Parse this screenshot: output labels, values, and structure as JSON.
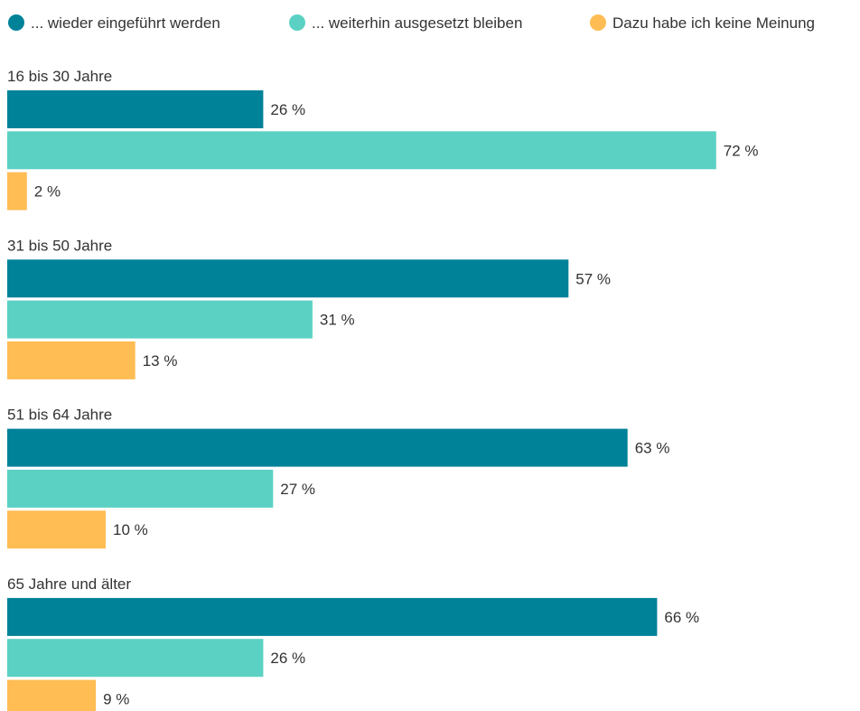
{
  "chart_data": {
    "type": "bar",
    "orientation": "horizontal",
    "grouping": "grouped",
    "legend_position": "top",
    "grid": false,
    "value_suffix": " %",
    "xlim": [
      0,
      72
    ],
    "categories": [
      "16 bis 30 Jahre",
      "31 bis 50 Jahre",
      "51 bis 64 Jahre",
      "65 Jahre und älter"
    ],
    "series": [
      {
        "name": "... wieder eingeführt werden",
        "color": "#008299",
        "values": [
          26,
          57,
          63,
          66
        ]
      },
      {
        "name": "... weiterhin ausgesetzt bleiben",
        "color": "#5bd1c3",
        "values": [
          72,
          31,
          27,
          26
        ]
      },
      {
        "name": "Dazu habe ich keine Meinung",
        "color": "#ffbd54",
        "values": [
          2,
          13,
          10,
          9
        ]
      }
    ]
  }
}
